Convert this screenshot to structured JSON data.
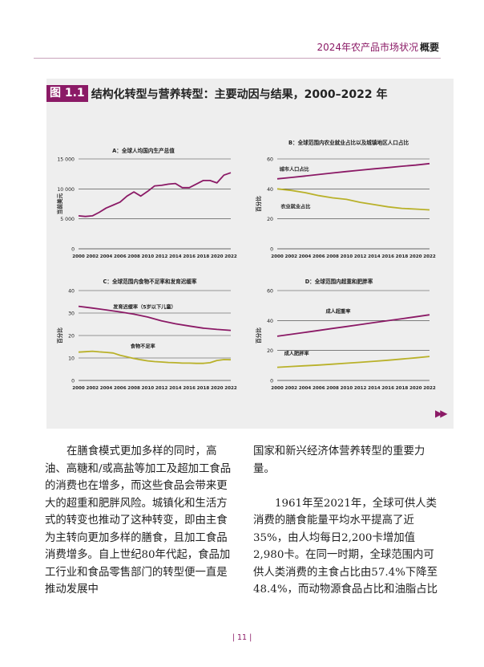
{
  "header": {
    "title": "2024年农产品市场状况",
    "section": "概要"
  },
  "figure": {
    "number": "图 1.1",
    "title": "结构化转型与营养转型：主要动因与结果，2000–2022 年"
  },
  "chart_data": [
    {
      "id": "A",
      "type": "line",
      "title": "A：全球人均国内生产总值",
      "ylabel": "当前美元",
      "xlabel": "",
      "xlim": [
        2000,
        2022
      ],
      "ylim": [
        0,
        15000
      ],
      "yticks": [
        0,
        5000,
        10000,
        15000
      ],
      "ytick_labels": [
        "0",
        "5 000",
        "10 000",
        "15 000"
      ],
      "xticks": [
        2000,
        2002,
        2004,
        2006,
        2008,
        2010,
        2012,
        2014,
        2016,
        2018,
        2020,
        2022
      ],
      "grid": true,
      "series": [
        {
          "color": "#8b1a66",
          "x": [
            2000,
            2001,
            2002,
            2003,
            2004,
            2005,
            2006,
            2007,
            2008,
            2009,
            2010,
            2011,
            2012,
            2013,
            2014,
            2015,
            2016,
            2017,
            2018,
            2019,
            2020,
            2021,
            2022
          ],
          "values": [
            5500,
            5400,
            5500,
            6100,
            6800,
            7300,
            7800,
            8800,
            9500,
            8800,
            9600,
            10500,
            10600,
            10800,
            10900,
            10200,
            10200,
            10800,
            11400,
            11400,
            11000,
            12300,
            12700
          ]
        }
      ],
      "annotations": []
    },
    {
      "id": "B",
      "type": "line",
      "title": "B：全球范围内农业就业占比以及城镇地区人口占比",
      "ylabel": "百分比",
      "xlabel": "",
      "xlim": [
        2000,
        2022
      ],
      "ylim": [
        0,
        60
      ],
      "yticks": [
        0,
        20,
        40,
        60
      ],
      "ytick_labels": [
        "0",
        "20",
        "40",
        "60"
      ],
      "xticks": [
        2000,
        2002,
        2004,
        2006,
        2008,
        2010,
        2012,
        2014,
        2016,
        2018,
        2020,
        2022
      ],
      "grid": true,
      "series": [
        {
          "name": "城市人口占比",
          "color": "#8b1a66",
          "x": [
            2000,
            2002,
            2004,
            2006,
            2008,
            2010,
            2012,
            2014,
            2016,
            2018,
            2020,
            2022
          ],
          "values": [
            46.7,
            47.6,
            48.6,
            49.6,
            50.6,
            51.6,
            52.5,
            53.4,
            54.2,
            55.1,
            55.9,
            56.9
          ]
        },
        {
          "name": "农业就业占比",
          "color": "#b9b12a",
          "x": [
            2000,
            2002,
            2004,
            2006,
            2008,
            2010,
            2012,
            2014,
            2016,
            2018,
            2020,
            2022
          ],
          "values": [
            40.0,
            39.0,
            37.5,
            35.5,
            34.0,
            33.0,
            31.0,
            29.5,
            28.0,
            27.0,
            26.5,
            26.0
          ]
        }
      ],
      "annotations": [
        {
          "text": "城市人口占比",
          "x": 2000.3,
          "y": 52
        },
        {
          "text": "农业就业占比",
          "x": 2000.5,
          "y": 27
        }
      ]
    },
    {
      "id": "C",
      "type": "line",
      "title": "C：全球范围内食物不足率和发育迟缓率",
      "ylabel": "百分比",
      "xlabel": "",
      "xlim": [
        2000,
        2022
      ],
      "ylim": [
        0,
        40
      ],
      "yticks": [
        0,
        10,
        20,
        30,
        40
      ],
      "ytick_labels": [
        "0",
        "10",
        "20",
        "30",
        "40"
      ],
      "xticks": [
        2000,
        2002,
        2004,
        2006,
        2008,
        2010,
        2012,
        2014,
        2016,
        2018,
        2020,
        2022
      ],
      "grid": true,
      "series": [
        {
          "name": "发育迟缓率（5岁以下儿童）",
          "color": "#8b1a66",
          "x": [
            2000,
            2002,
            2004,
            2006,
            2008,
            2010,
            2012,
            2014,
            2016,
            2018,
            2020,
            2022
          ],
          "values": [
            33.0,
            32.2,
            31.4,
            30.5,
            29.5,
            28.2,
            26.5,
            25.2,
            24.2,
            23.3,
            22.7,
            22.3
          ]
        },
        {
          "name": "食物不足率",
          "color": "#b9b12a",
          "x": [
            2000,
            2001,
            2002,
            2003,
            2004,
            2005,
            2006,
            2007,
            2008,
            2009,
            2010,
            2011,
            2012,
            2013,
            2014,
            2015,
            2016,
            2017,
            2018,
            2019,
            2020,
            2021,
            2022
          ],
          "values": [
            12.6,
            12.8,
            13.0,
            12.7,
            12.5,
            12.2,
            11.2,
            10.5,
            9.8,
            9.2,
            8.7,
            8.4,
            8.2,
            8.0,
            7.9,
            7.7,
            7.7,
            7.6,
            7.6,
            7.9,
            8.9,
            9.3,
            9.2
          ]
        }
      ],
      "annotations": [
        {
          "text": "发育迟缓率（5岁以下儿童）",
          "x": 2005,
          "y": 32
        },
        {
          "text": "食物不足率",
          "x": 2007.5,
          "y": 14.5
        }
      ]
    },
    {
      "id": "D",
      "type": "line",
      "title": "D：全球范围内超重和肥胖率",
      "ylabel": "百分比",
      "xlabel": "",
      "xlim": [
        2000,
        2022
      ],
      "ylim": [
        0,
        60
      ],
      "yticks": [
        0,
        20,
        40,
        60
      ],
      "ytick_labels": [
        "0",
        "20",
        "40",
        "60"
      ],
      "xticks": [
        2000,
        2002,
        2004,
        2006,
        2008,
        2010,
        2012,
        2014,
        2016,
        2018,
        2020,
        2022
      ],
      "grid": true,
      "series": [
        {
          "name": "成人超重率",
          "color": "#8b1a66",
          "x": [
            2000,
            2002,
            2004,
            2006,
            2008,
            2010,
            2012,
            2014,
            2016,
            2018,
            2020,
            2022
          ],
          "values": [
            29.5,
            30.8,
            32.1,
            33.4,
            34.7,
            36.0,
            37.3,
            38.6,
            39.9,
            41.2,
            42.5,
            43.8
          ]
        },
        {
          "name": "成人肥胖率",
          "color": "#b9b12a",
          "x": [
            2000,
            2002,
            2004,
            2006,
            2008,
            2010,
            2012,
            2014,
            2016,
            2018,
            2020,
            2022
          ],
          "values": [
            8.8,
            9.3,
            9.8,
            10.3,
            10.9,
            11.5,
            12.1,
            12.8,
            13.5,
            14.3,
            15.1,
            16.0
          ]
        }
      ],
      "annotations": [
        {
          "text": "成人超重率",
          "x": 2007,
          "y": 45
        },
        {
          "text": "成人肥胖率",
          "x": 2001,
          "y": 17
        }
      ]
    }
  ],
  "icons": {
    "next": "double-chevron-right-icon"
  },
  "body": {
    "left": "在膳食模式更加多样的同时，高油、高糖和/或高盐等加工及超加工食品的消费也在增多，而这些食品会带来更大的超重和肥胖风险。城镇化和生活方式的转变也推动了这种转变，即由主食为主转向更加多样的膳食，且加工食品消费增多。自上世纪80年代起，食品加工行业和食品零售部门的转型便一直是推动发展中",
    "right_p1": "国家和新兴经济体营养转型的重要力量。",
    "right_p2": "1961年至2021年，全球可供人类消费的膳食能量平均水平提高了近35%，由人均每日2,200卡增加值2,980卡。在同一时期，全球范围内可供人类消费的主食占比由57.4%下降至48.4%，而动物源食品占比和油脂占比"
  },
  "footer": {
    "page": "| 11 |"
  }
}
